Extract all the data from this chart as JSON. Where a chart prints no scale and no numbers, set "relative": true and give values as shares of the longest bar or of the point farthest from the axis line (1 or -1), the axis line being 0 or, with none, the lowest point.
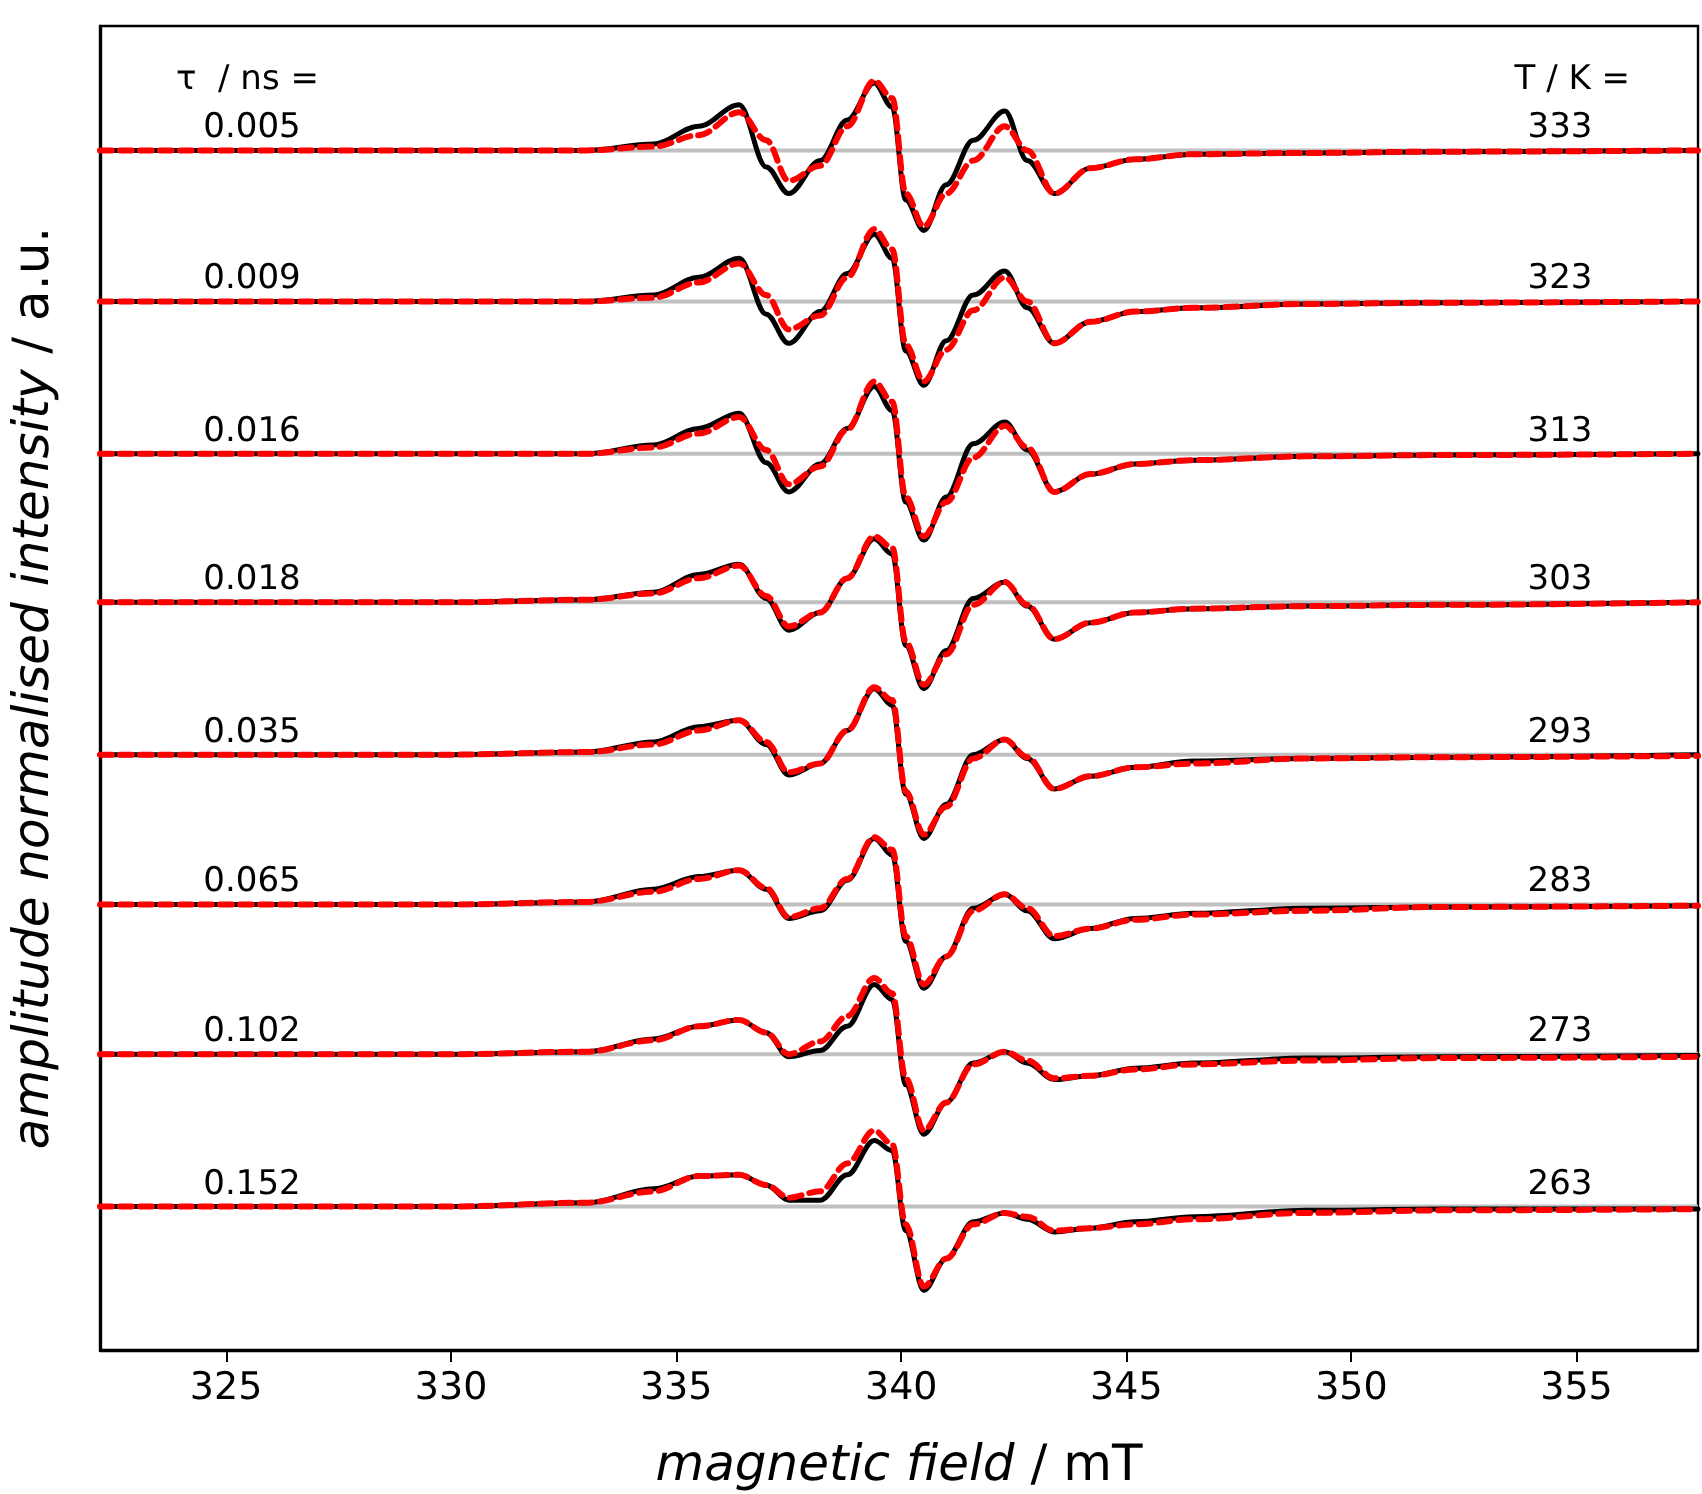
{
  "chart_data": {
    "type": "line",
    "relative": true,
    "xlabel": "magnetic field / mT",
    "ylabel": "amplitude normalised intensity / a.u.",
    "xlim": [
      322.2,
      357.7
    ],
    "xticks": [
      325,
      330,
      335,
      340,
      345,
      350,
      355
    ],
    "grid": false,
    "legend": false,
    "marker": "none",
    "x": [
      322.2,
      330,
      333,
      334.5,
      335.5,
      336.4,
      337.0,
      337.5,
      338.2,
      338.8,
      339.4,
      339.8,
      340.1,
      340.5,
      341.0,
      341.6,
      342.3,
      342.8,
      343.4,
      344.2,
      345.2,
      346.5,
      349,
      352,
      357.7
    ],
    "series": [
      {
        "color": "#000000",
        "line_style": "solid",
        "values": [
          0.945,
          0.945,
          0.945,
          0.95,
          0.964,
          0.981,
          0.932,
          0.911,
          0.937,
          0.969,
          0.998,
          0.979,
          0.906,
          0.882,
          0.918,
          0.953,
          0.976,
          0.937,
          0.911,
          0.931,
          0.938,
          0.942,
          0.943,
          0.944,
          0.945
        ]
      },
      {
        "color": "#ff0000",
        "line_style": "dashed",
        "values": [
          0.945,
          0.945,
          0.945,
          0.948,
          0.957,
          0.975,
          0.953,
          0.921,
          0.933,
          0.964,
          1.0,
          0.986,
          0.911,
          0.885,
          0.911,
          0.937,
          0.964,
          0.945,
          0.911,
          0.931,
          0.938,
          0.942,
          0.943,
          0.944,
          0.945
        ]
      },
      {
        "color": "#000000",
        "line_style": "solid",
        "values": [
          0.826,
          0.826,
          0.826,
          0.831,
          0.845,
          0.86,
          0.816,
          0.793,
          0.818,
          0.848,
          0.879,
          0.86,
          0.787,
          0.76,
          0.795,
          0.831,
          0.85,
          0.821,
          0.793,
          0.81,
          0.818,
          0.821,
          0.824,
          0.825,
          0.826
        ]
      },
      {
        "color": "#ff0000",
        "line_style": "dashed",
        "values": [
          0.826,
          0.826,
          0.826,
          0.829,
          0.841,
          0.856,
          0.831,
          0.804,
          0.815,
          0.845,
          0.883,
          0.867,
          0.792,
          0.763,
          0.788,
          0.819,
          0.845,
          0.826,
          0.793,
          0.81,
          0.818,
          0.821,
          0.824,
          0.825,
          0.826
        ]
      },
      {
        "color": "#000000",
        "line_style": "solid",
        "values": [
          0.706,
          0.706,
          0.706,
          0.713,
          0.726,
          0.738,
          0.699,
          0.676,
          0.698,
          0.726,
          0.759,
          0.74,
          0.668,
          0.638,
          0.672,
          0.714,
          0.731,
          0.709,
          0.676,
          0.69,
          0.698,
          0.701,
          0.704,
          0.705,
          0.706
        ]
      },
      {
        "color": "#ff0000",
        "line_style": "dashed",
        "values": [
          0.706,
          0.706,
          0.706,
          0.711,
          0.722,
          0.735,
          0.709,
          0.682,
          0.696,
          0.725,
          0.763,
          0.747,
          0.672,
          0.641,
          0.668,
          0.703,
          0.728,
          0.711,
          0.676,
          0.69,
          0.698,
          0.701,
          0.704,
          0.705,
          0.706
        ]
      },
      {
        "color": "#000000",
        "line_style": "solid",
        "values": [
          0.589,
          0.589,
          0.591,
          0.597,
          0.611,
          0.619,
          0.592,
          0.567,
          0.581,
          0.608,
          0.639,
          0.627,
          0.555,
          0.521,
          0.551,
          0.592,
          0.605,
          0.586,
          0.56,
          0.573,
          0.581,
          0.584,
          0.586,
          0.587,
          0.589
        ]
      },
      {
        "color": "#ff0000",
        "line_style": "dashed",
        "values": [
          0.589,
          0.589,
          0.591,
          0.596,
          0.608,
          0.618,
          0.594,
          0.57,
          0.581,
          0.608,
          0.641,
          0.632,
          0.558,
          0.524,
          0.548,
          0.587,
          0.605,
          0.587,
          0.56,
          0.573,
          0.581,
          0.584,
          0.586,
          0.587,
          0.589
        ]
      },
      {
        "color": "#000000",
        "line_style": "solid",
        "values": [
          0.469,
          0.469,
          0.471,
          0.479,
          0.491,
          0.496,
          0.477,
          0.453,
          0.462,
          0.488,
          0.521,
          0.508,
          0.438,
          0.403,
          0.43,
          0.469,
          0.481,
          0.466,
          0.442,
          0.452,
          0.459,
          0.464,
          0.466,
          0.467,
          0.469
        ]
      },
      {
        "color": "#ff0000",
        "line_style": "dashed",
        "values": [
          0.469,
          0.469,
          0.471,
          0.477,
          0.488,
          0.496,
          0.479,
          0.455,
          0.462,
          0.488,
          0.522,
          0.512,
          0.44,
          0.406,
          0.428,
          0.466,
          0.481,
          0.467,
          0.442,
          0.452,
          0.459,
          0.462,
          0.466,
          0.467,
          0.468
        ]
      },
      {
        "color": "#000000",
        "line_style": "solid",
        "values": [
          0.351,
          0.351,
          0.353,
          0.363,
          0.373,
          0.378,
          0.363,
          0.34,
          0.346,
          0.37,
          0.403,
          0.39,
          0.322,
          0.285,
          0.31,
          0.348,
          0.359,
          0.346,
          0.324,
          0.332,
          0.34,
          0.344,
          0.348,
          0.349,
          0.35
        ]
      },
      {
        "color": "#ff0000",
        "line_style": "dashed",
        "values": [
          0.351,
          0.351,
          0.353,
          0.361,
          0.371,
          0.378,
          0.364,
          0.341,
          0.348,
          0.371,
          0.404,
          0.394,
          0.326,
          0.288,
          0.31,
          0.346,
          0.359,
          0.348,
          0.326,
          0.332,
          0.339,
          0.343,
          0.346,
          0.349,
          0.35
        ]
      },
      {
        "color": "#000000",
        "line_style": "solid",
        "values": [
          0.233,
          0.233,
          0.235,
          0.245,
          0.255,
          0.26,
          0.25,
          0.231,
          0.236,
          0.255,
          0.288,
          0.276,
          0.209,
          0.17,
          0.195,
          0.226,
          0.235,
          0.226,
          0.213,
          0.216,
          0.222,
          0.226,
          0.23,
          0.231,
          0.232
        ]
      },
      {
        "color": "#ff0000",
        "line_style": "dashed",
        "values": [
          0.233,
          0.233,
          0.235,
          0.244,
          0.255,
          0.26,
          0.25,
          0.233,
          0.243,
          0.263,
          0.293,
          0.281,
          0.214,
          0.173,
          0.195,
          0.225,
          0.235,
          0.228,
          0.214,
          0.216,
          0.221,
          0.225,
          0.228,
          0.23,
          0.231
        ]
      },
      {
        "color": "#000000",
        "line_style": "solid",
        "values": [
          0.113,
          0.113,
          0.116,
          0.127,
          0.137,
          0.138,
          0.13,
          0.118,
          0.118,
          0.138,
          0.165,
          0.157,
          0.094,
          0.047,
          0.072,
          0.101,
          0.108,
          0.103,
          0.093,
          0.096,
          0.101,
          0.105,
          0.11,
          0.111,
          0.111
        ]
      },
      {
        "color": "#ff0000",
        "line_style": "dashed",
        "values": [
          0.113,
          0.113,
          0.116,
          0.125,
          0.137,
          0.138,
          0.13,
          0.12,
          0.125,
          0.147,
          0.173,
          0.162,
          0.099,
          0.05,
          0.072,
          0.099,
          0.108,
          0.105,
          0.094,
          0.096,
          0.099,
          0.103,
          0.108,
          0.11,
          0.111
        ]
      }
    ],
    "ref_lines": [
      {
        "axis": "y",
        "value": 0.945,
        "color": "#c0c0c0"
      },
      {
        "axis": "y",
        "value": 0.826,
        "color": "#c0c0c0"
      },
      {
        "axis": "y",
        "value": 0.706,
        "color": "#c0c0c0"
      },
      {
        "axis": "y",
        "value": 0.589,
        "color": "#c0c0c0"
      },
      {
        "axis": "y",
        "value": 0.469,
        "color": "#c0c0c0"
      },
      {
        "axis": "y",
        "value": 0.351,
        "color": "#c0c0c0"
      },
      {
        "axis": "y",
        "value": 0.233,
        "color": "#c0c0c0"
      },
      {
        "axis": "y",
        "value": 0.113,
        "color": "#c0c0c0"
      }
    ],
    "annotations": [
      "τ  / ns =",
      "T / K =",
      "0.005",
      "0.009",
      "0.016",
      "0.018",
      "0.035",
      "0.065",
      "0.102",
      "0.152",
      "333",
      "323",
      "313",
      "303",
      "293",
      "283",
      "273",
      "263"
    ]
  }
}
